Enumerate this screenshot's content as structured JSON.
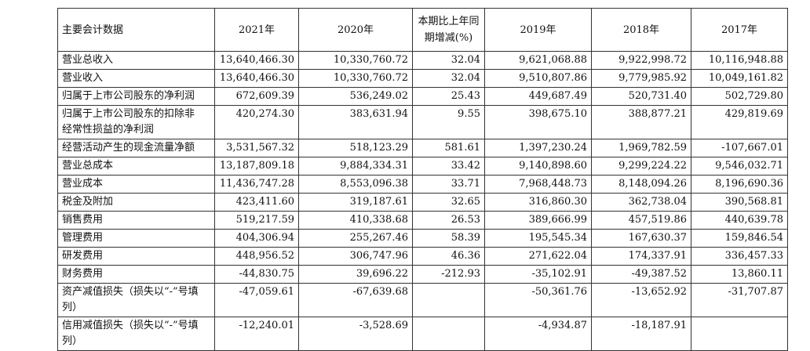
{
  "table": {
    "header": [
      "主要会计数据",
      "2021年",
      "2020年",
      "本期比上年同期增减(%)",
      "2019年",
      "2018年",
      "2017年"
    ],
    "rows": [
      [
        "营业总收入",
        "13,640,466.30",
        "10,330,760.72",
        "32.04",
        "9,621,068.88",
        "9,922,998.72",
        "10,116,948.88"
      ],
      [
        "营业收入",
        "13,640,466.30",
        "10,330,760.72",
        "32.04",
        "9,510,807.86",
        "9,779,985.92",
        "10,049,161.82"
      ],
      [
        "归属于上市公司股东的净利润",
        "672,609.39",
        "536,249.02",
        "25.43",
        "449,687.49",
        "520,731.40",
        "502,729.80"
      ],
      [
        "归属于上市公司股东的扣除非经常性损益的净利润",
        "420,274.30",
        "383,631.94",
        "9.55",
        "398,675.10",
        "388,877.21",
        "429,819.69"
      ],
      [
        "经营活动产生的现金流量净额",
        "3,531,567.32",
        "518,123.29",
        "581.61",
        "1,397,230.24",
        "1,969,782.59",
        "-107,667.01"
      ],
      [
        "营业总成本",
        "13,187,809.18",
        "9,884,334.31",
        "33.42",
        "9,140,898.60",
        "9,299,224.22",
        "9,546,032.71"
      ],
      [
        "营业成本",
        "11,436,747.28",
        "8,553,096.38",
        "33.71",
        "7,968,448.73",
        "8,148,094.26",
        "8,196,690.36"
      ],
      [
        "税金及附加",
        "423,411.60",
        "319,187.61",
        "32.65",
        "316,860.30",
        "362,738.04",
        "390,568.81"
      ],
      [
        "销售费用",
        "519,217.59",
        "410,338.68",
        "26.53",
        "389,666.99",
        "457,519.86",
        "440,639.78"
      ],
      [
        "管理费用",
        "404,306.94",
        "255,267.46",
        "58.39",
        "195,545.34",
        "167,630.37",
        "159,846.54"
      ],
      [
        "研发费用",
        "448,956.52",
        "306,747.96",
        "46.36",
        "271,622.04",
        "174,337.91",
        "336,457.33"
      ],
      [
        "财务费用",
        "-44,830.75",
        "39,696.22",
        "-212.93",
        "-35,102.91",
        "-49,387.52",
        "13,860.11"
      ],
      [
        "资产减值损失（损失以“-”号填列）",
        "-47,059.61",
        "-67,639.68",
        null,
        "-50,361.76",
        "-13,652.92",
        "-31,707.87"
      ],
      [
        "信用减值损失（损失以“-”号填列）",
        "-12,240.01",
        "-3,528.69",
        null,
        "-4,934.87",
        "-18,187.91",
        null
      ]
    ]
  }
}
